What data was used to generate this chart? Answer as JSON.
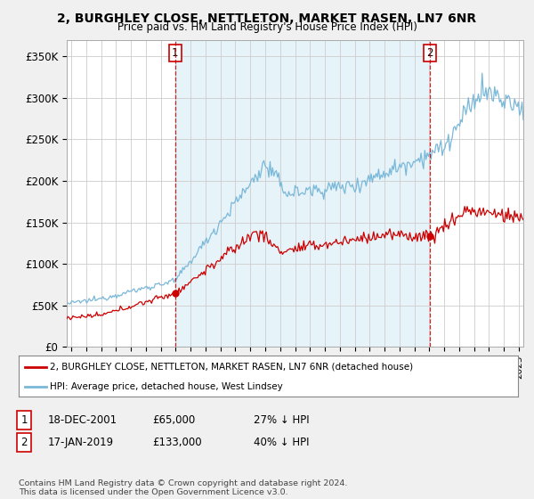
{
  "title": "2, BURGHLEY CLOSE, NETTLETON, MARKET RASEN, LN7 6NR",
  "subtitle": "Price paid vs. HM Land Registry's House Price Index (HPI)",
  "ylabel_ticks": [
    "£0",
    "£50K",
    "£100K",
    "£150K",
    "£200K",
    "£250K",
    "£300K",
    "£350K"
  ],
  "ytick_values": [
    0,
    50000,
    100000,
    150000,
    200000,
    250000,
    300000,
    350000
  ],
  "ylim": [
    0,
    370000
  ],
  "xlim_start": 1994.7,
  "xlim_end": 2025.3,
  "sale1_x": 2001.96,
  "sale1_y": 65000,
  "sale1_label": "1",
  "sale2_x": 2019.04,
  "sale2_y": 133000,
  "sale2_label": "2",
  "legend_line1": "2, BURGHLEY CLOSE, NETTLETON, MARKET RASEN, LN7 6NR (detached house)",
  "legend_line2": "HPI: Average price, detached house, West Lindsey",
  "footnote": "Contains HM Land Registry data © Crown copyright and database right 2024.\nThis data is licensed under the Open Government Licence v3.0.",
  "hpi_color": "#7ab8d9",
  "hpi_fill": "#dceef7",
  "price_color": "#cc0000",
  "vline_color": "#cc0000",
  "bg_color": "#f0f0f0",
  "plot_bg": "#ffffff",
  "grid_color": "#cccccc"
}
